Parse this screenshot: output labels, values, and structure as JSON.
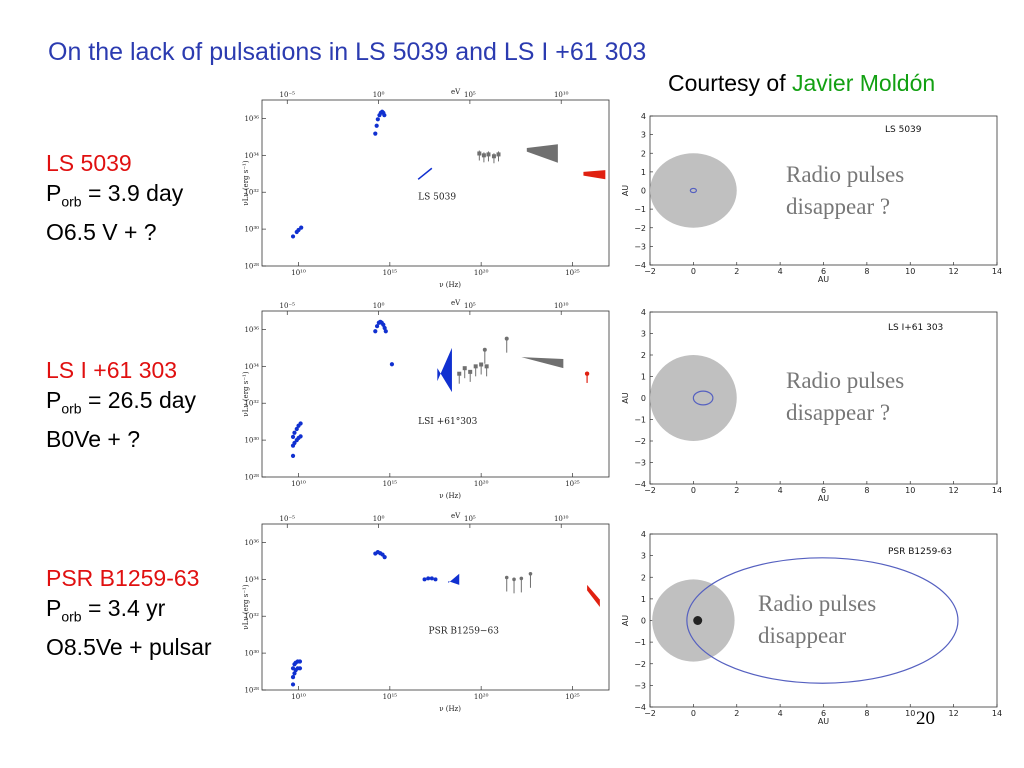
{
  "slide": {
    "title": "On the lack of pulsations in LS 5039 and LS I +61 303",
    "courtesy_prefix": "Courtesy of ",
    "courtesy_name": "Javier Moldón",
    "page_number": "20"
  },
  "systems": [
    {
      "name": "LS 5039",
      "p_main": "P",
      "p_sub": "orb",
      "p_value": "= 3.9 day",
      "type": "O6.5 V + ?"
    },
    {
      "name": "LS I +61 303",
      "p_main": "P",
      "p_sub": "orb",
      "p_value": "= 26.5 day",
      "type": "B0Ve + ?"
    },
    {
      "name": "PSR B1259-63",
      "p_main": "P",
      "p_sub": "orb",
      "p_value": "= 3.4 yr",
      "type": "O8.5Ve + pulsar"
    }
  ],
  "sed_axes": {
    "top_label": "eV",
    "top_ticks": [
      "10⁻⁵",
      "10⁰",
      "10⁵",
      "10¹⁰"
    ],
    "bottom_ticks": [
      "10¹⁰",
      "10¹⁵",
      "10²⁰",
      "10²⁵"
    ],
    "y_ticks": [
      "10³⁶",
      "10³⁴",
      "10³²",
      "10³⁰",
      "10²⁸"
    ],
    "ylabel": "νLν (erg s⁻¹)",
    "xlabel": "ν (Hz)"
  },
  "orbit_axes": {
    "x_ticks": [
      "−2",
      "0",
      "2",
      "4",
      "6",
      "8",
      "10",
      "12",
      "14"
    ],
    "y_ticks": [
      "4",
      "3",
      "2",
      "1",
      "0",
      "−1",
      "−2",
      "−3",
      "−4"
    ],
    "xlabel": "AU",
    "ylabel": "AU"
  },
  "colors": {
    "title": "#2b3bb0",
    "red_text": "#e01010",
    "green_text": "#12a012",
    "radio_points": "#1030d0",
    "xray": "#1030d0",
    "gev": "#707070",
    "tev": "#e02010",
    "star_disc": "#c0c0c0",
    "orbit": "#5560c0"
  },
  "chart_data": [
    {
      "type": "scatter",
      "title": "LS 5039",
      "xlabel": "ν (Hz)",
      "ylabel": "νLν (erg s⁻¹)",
      "x_log": true,
      "y_log": true,
      "xlim": [
        100000000.0,
        1e+27
      ],
      "ylim": [
        1e+28,
        1e+37
      ],
      "series": [
        {
          "x": [
            5000000000.0,
            8000000000.0,
            10000000000.0,
            14000000000.0
          ],
          "y": [
            4e+29,
            7e+29,
            9e+29,
            1.2e+30
          ]
        },
        {
          "x": [
            160000000000000.0,
            190000000000000.0,
            220000000000000.0,
            270000000000000.0,
            320000000000000.0,
            380000000000000.0,
            440000000000000.0,
            500000000000000.0
          ],
          "y": [
            1.5e+35,
            4e+35,
            9e+35,
            1.5e+36,
            2e+36,
            2.3e+36,
            2e+36,
            1.5e+36
          ]
        }
      ]
    },
    {
      "type": "scatter",
      "title": "LSI +61°303",
      "xlabel": "ν (Hz)",
      "ylabel": "νLν (erg s⁻¹)",
      "x_log": true,
      "y_log": true,
      "xlim": [
        100000000.0,
        1e+27
      ],
      "ylim": [
        1e+28,
        1e+37
      ],
      "series": [
        {
          "x": [
            5000000000.0,
            6000000000.0,
            8000000000.0,
            10000000000.0,
            13000000000.0,
            5000000000.0,
            6000000000.0,
            8000000000.0,
            10000000000.0,
            13000000000.0,
            5000000000.0
          ],
          "y": [
            1.5e+30,
            2.5e+30,
            4e+30,
            6e+30,
            8e+30,
            5e+29,
            7e+29,
            1e+30,
            1.3e+30,
            1.6e+30,
            1.4e+29
          ]
        },
        {
          "x": [
            160000000000000.0,
            200000000000000.0,
            250000000000000.0,
            300000000000000.0,
            360000000000000.0,
            440000000000000.0,
            520000000000000.0,
            600000000000000.0,
            1300000000000000.0
          ],
          "y": [
            8e+35,
            1.5e+36,
            2.3e+36,
            2.6e+36,
            2.3e+36,
            1.8e+36,
            1.2e+36,
            8e+35,
            1.3e+34
          ]
        }
      ]
    },
    {
      "type": "scatter",
      "title": "PSR B1259−63",
      "xlabel": "ν (Hz)",
      "ylabel": "νLν (erg s⁻¹)",
      "x_log": true,
      "y_log": true,
      "xlim": [
        100000000.0,
        1e+27
      ],
      "ylim": [
        1e+28,
        1e+37
      ],
      "series": [
        {
          "x": [
            5000000000.0,
            6000000000.0,
            7000000000.0,
            9000000000.0,
            12000000000.0,
            5000000000.0,
            6000000000.0,
            7000000000.0,
            9000000000.0,
            12000000000.0,
            5000000000.0
          ],
          "y": [
            1.5e+29,
            2.5e+29,
            3e+29,
            3.5e+29,
            3.5e+29,
            5e+28,
            8e+28,
            1.2e+29,
            1.5e+29,
            1.5e+29,
            2e+28
          ]
        },
        {
          "x": [
            160000000000000.0,
            220000000000000.0,
            300000000000000.0,
            400000000000000.0,
            520000000000000.0
          ],
          "y": [
            2.5e+35,
            3e+35,
            2.6e+35,
            2.2e+35,
            1.6e+35
          ]
        }
      ]
    }
  ],
  "orbits": [
    {
      "label": "LS 5039",
      "annotation": "Radio pulses disappear ?",
      "annotation_lines": [
        "Radio pulses",
        "disappear ?"
      ],
      "star_radius_au": 2.0,
      "orbit_a_au": 0.14,
      "orbit_b_au": 0.11,
      "orbit_center_x": 0.0,
      "orbit_center_y": 0.0,
      "marker": false
    },
    {
      "label": "LS I+61 303",
      "annotation": "Radio pulses disappear ?",
      "annotation_lines": [
        "Radio pulses",
        "disappear ?"
      ],
      "star_radius_au": 2.0,
      "orbit_a_au": 0.45,
      "orbit_b_au": 0.32,
      "orbit_center_x": 0.45,
      "orbit_center_y": 0.0,
      "marker": false
    },
    {
      "label": "PSR B1259-63",
      "annotation": "Radio pulses disappear",
      "annotation_lines": [
        "Radio pulses",
        "disappear"
      ],
      "star_radius_au": 1.9,
      "orbit_a_au": 6.25,
      "orbit_b_au": 2.9,
      "orbit_center_x": 5.95,
      "orbit_center_y": 0.0,
      "marker": true
    }
  ]
}
